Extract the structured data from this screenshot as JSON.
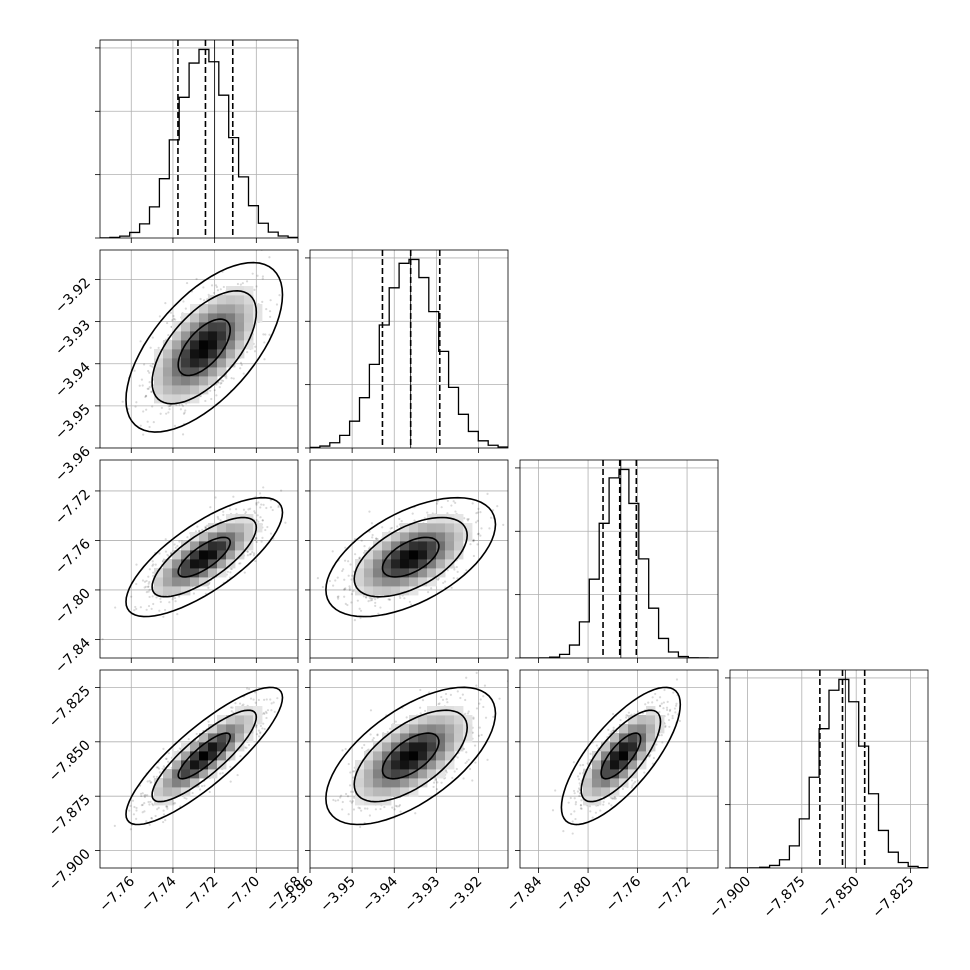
{
  "chart_data": {
    "type": "corner",
    "title": "",
    "parameters": [
      {
        "range": [
          -7.775,
          -7.68
        ],
        "ticks": [
          -7.76,
          -7.74,
          -7.72,
          -7.7,
          -7.68
        ],
        "tick_labels": [
          "−7.76",
          "−7.74",
          "−7.72",
          "−7.70",
          "−7.68"
        ],
        "mean": -7.725,
        "sd": 0.0125,
        "quantiles": [
          -7.7376,
          -7.7244,
          -7.7113
        ],
        "truth": -7.72
      },
      {
        "range": [
          -3.96,
          -3.913
        ],
        "ticks": [
          -3.96,
          -3.95,
          -3.94,
          -3.93,
          -3.92
        ],
        "tick_labels": [
          "−3.96",
          "−3.95",
          "−3.94",
          "−3.93",
          "−3.92"
        ],
        "mean": -3.9361,
        "sd": 0.0067,
        "quantiles": [
          -3.9428,
          -3.9361,
          -3.9292
        ],
        "truth": -3.9361
      },
      {
        "range": [
          -7.855,
          -7.695
        ],
        "ticks": [
          -7.84,
          -7.8,
          -7.76,
          -7.72
        ],
        "tick_labels": [
          "−7.84",
          "−7.80",
          "−7.76",
          "−7.72"
        ],
        "mean": -7.7735,
        "sd": 0.016,
        "quantiles": [
          -7.7879,
          -7.7744,
          -7.761
        ],
        "truth": -7.7735
      },
      {
        "range": [
          -7.908,
          -7.817
        ],
        "ticks": [
          -7.9,
          -7.875,
          -7.85,
          -7.825
        ],
        "tick_labels": [
          "−7.900",
          "−7.875",
          "−7.850",
          "−7.825"
        ],
        "mean": -7.8565,
        "sd": 0.0105,
        "quantiles": [
          -7.8667,
          -7.8563,
          -7.8461
        ],
        "truth": -7.855
      }
    ],
    "correlations": {
      "p1_p0": 0.62,
      "p2_p0": 0.75,
      "p2_p1": 0.55,
      "p3_p0": 0.85,
      "p3_p1": 0.62,
      "p3_p2": 0.75
    },
    "diagonal_histogram_bins": 20,
    "contour_levels": [
      0.393,
      0.865,
      0.989
    ],
    "grid": true,
    "xlabel": "",
    "ylabel": ""
  }
}
